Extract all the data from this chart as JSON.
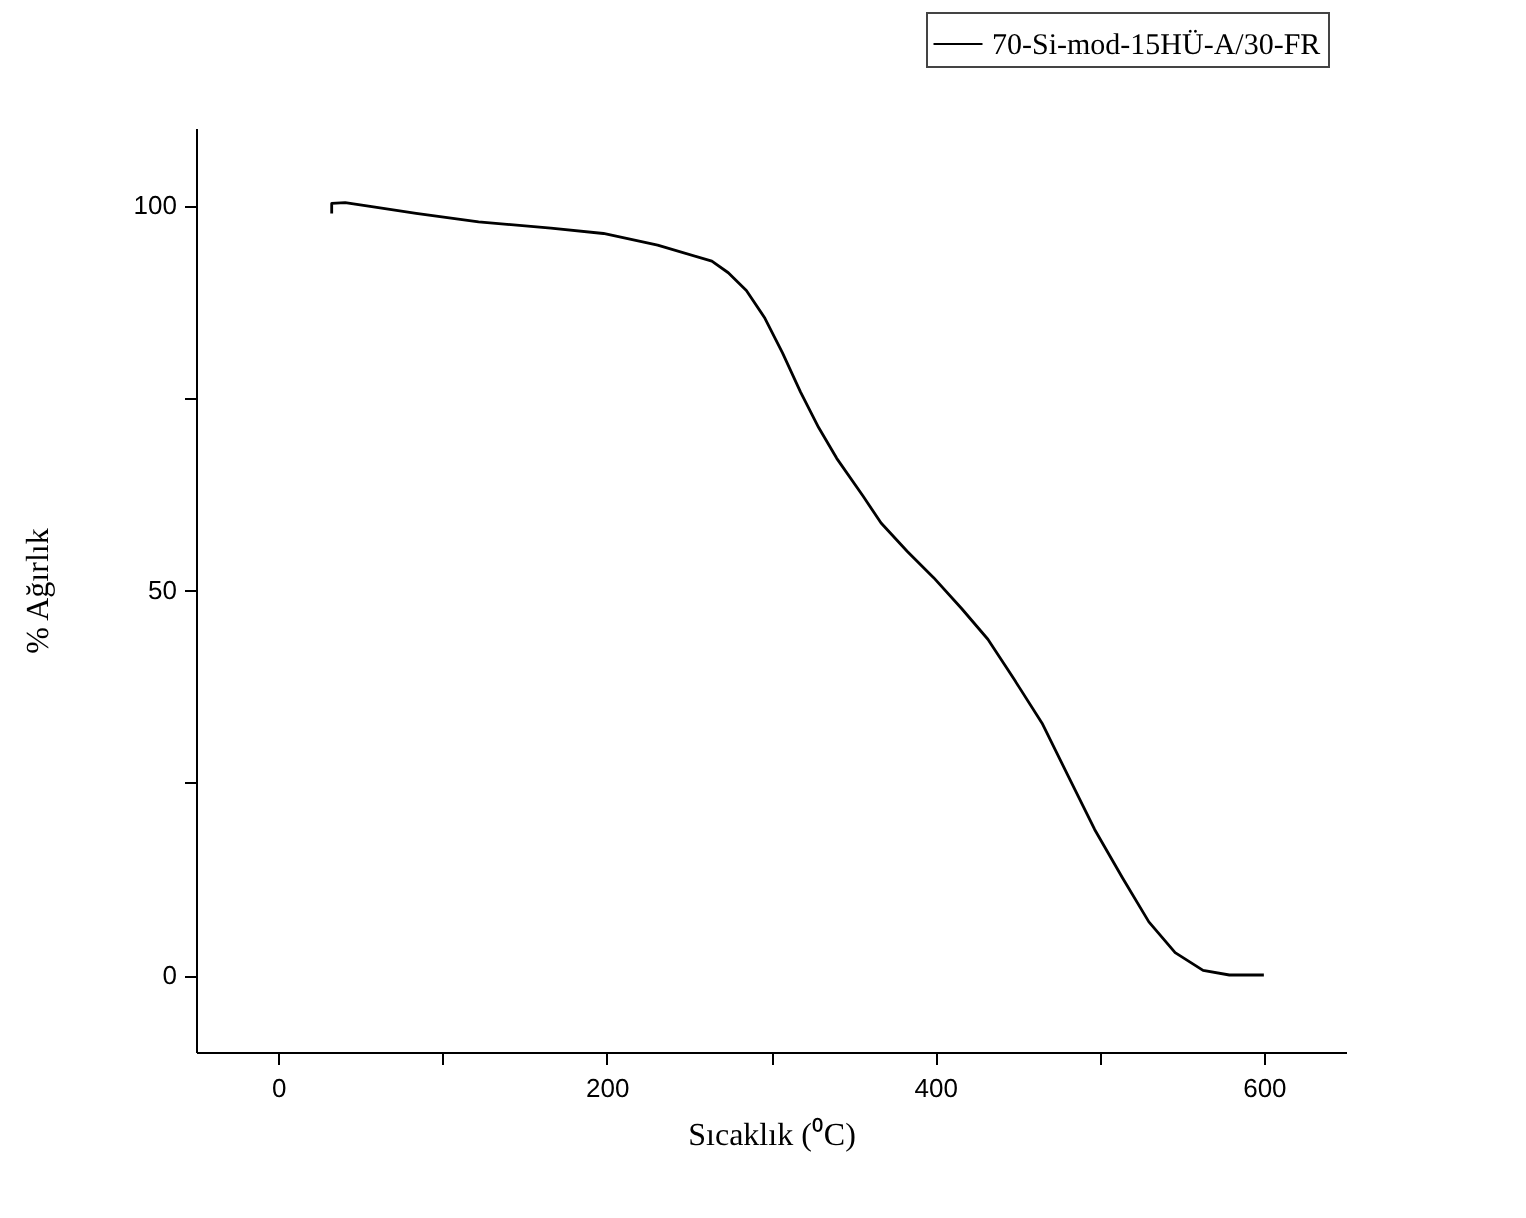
{
  "chart_data": {
    "type": "line",
    "xlabel": "Sıcaklık (⁰C)",
    "ylabel": "% Ağırlık",
    "xlim": [
      -50,
      650
    ],
    "ylim": [
      -10,
      110
    ],
    "xticks": [
      0,
      {
        "value": 100,
        "label": null
      },
      200,
      {
        "value": 300,
        "label": null
      },
      400,
      {
        "value": 500,
        "label": null
      },
      600
    ],
    "yticks": [
      0,
      {
        "value": 25,
        "label": null
      },
      50,
      {
        "value": 75,
        "label": null
      },
      100
    ],
    "grid": false,
    "legend": "top right",
    "marker": "none",
    "line_style": "solid",
    "series": [
      {
        "name": "70-Si-mod-15HÜ-A/30-FR",
        "color": "#000000",
        "x": [
          32.6,
          32.6,
          40.8,
          57,
          84,
          122,
          166,
          198,
          231,
          264,
          274,
          285,
          296,
          307,
          318,
          329,
          340,
          356,
          367,
          383,
          399,
          416,
          432,
          448,
          465,
          481,
          497,
          514,
          530,
          546,
          563,
          579,
          600
        ],
        "values": [
          98.9,
          100.2,
          100.3,
          99.8,
          98.9,
          97.8,
          97.0,
          96.3,
          94.8,
          92.7,
          91.2,
          88.9,
          85.4,
          80.8,
          75.7,
          71.1,
          67.1,
          62.2,
          58.7,
          55.0,
          51.6,
          47.6,
          43.6,
          38.4,
          32.7,
          25.8,
          18.9,
          12.6,
          6.9,
          2.9,
          0.6,
          0,
          0
        ]
      }
    ]
  }
}
